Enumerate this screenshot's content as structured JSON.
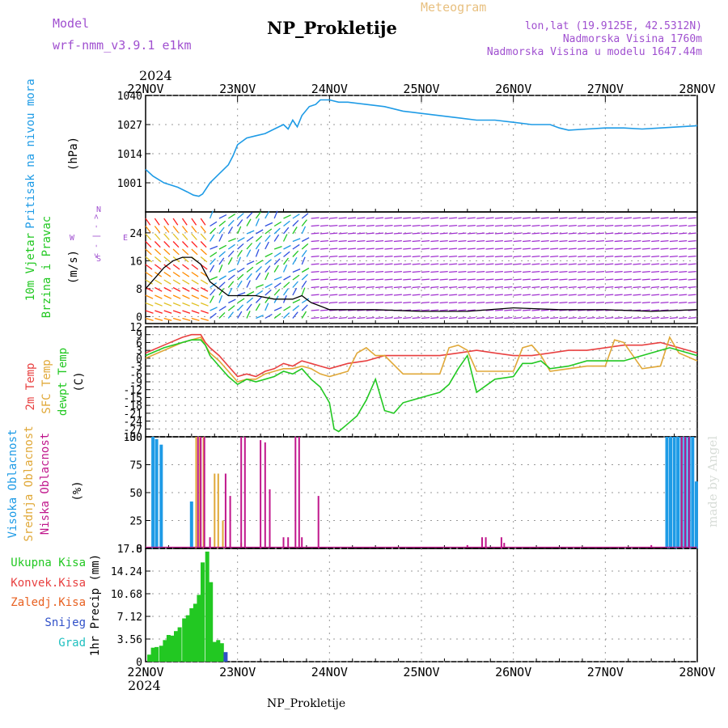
{
  "header": {
    "model_label": "Model",
    "model_name": "wrf-nmm_v3.9.1 e1km",
    "title": "NP_Prokletije",
    "meteogram_label": "Meteogram",
    "coords": "lon,lat (19.9125E, 42.5312N)",
    "altitude": "Nadmorska Visina 1760m",
    "model_altitude": "Nadmorska Visina u modelu 1647.44m",
    "year_top": "2024",
    "year_bottom": "2024",
    "footer_station": "NP_Prokletije",
    "watermark": "made by Angel"
  },
  "colors": {
    "pressure": "#1e9be6",
    "temp2m": "#e84040",
    "sfc": "#e0a838",
    "dewpt": "#22c822",
    "high_cloud": "#1e9be6",
    "mid_cloud": "#e0a838",
    "low_cloud": "#c0178c",
    "precip": "#22c822",
    "snow": "#3050c8",
    "grad": "#20c0c0",
    "violet": "#a050d0"
  },
  "chart_data": [
    {
      "type": "line",
      "panel": "pressure",
      "ylabel_name": "Pritisak na nivou mora",
      "ylabel_unit": "(hPa)",
      "x_labels": [
        "22NOV",
        "23NOV",
        "24NOV",
        "25NOV",
        "26NOV",
        "27NOV",
        "28NOV"
      ],
      "ylim": [
        988,
        1040
      ],
      "yticks": [
        1001,
        1014,
        1027,
        1040
      ],
      "series": [
        {
          "name": "",
          "x": [
            0,
            0.08,
            0.2,
            0.35,
            0.45,
            0.52,
            0.58,
            0.62,
            0.7,
            0.8,
            0.9,
            0.95,
            1.0,
            1.1,
            1.2,
            1.3,
            1.4,
            1.5,
            1.55,
            1.6,
            1.65,
            1.7,
            1.78,
            1.85,
            1.9,
            2.0,
            2.1,
            2.2,
            2.4,
            2.6,
            2.8,
            3.0,
            3.2,
            3.4,
            3.6,
            3.8,
            4.0,
            4.2,
            4.4,
            4.5,
            4.6,
            4.8,
            5.0,
            5.2,
            5.4,
            5.6,
            5.8,
            6.0
          ],
          "y": [
            1007,
            1004,
            1001,
            999,
            997,
            995.5,
            995,
            996,
            1001,
            1005,
            1009,
            1013,
            1018,
            1021,
            1022,
            1023,
            1025,
            1027,
            1025,
            1029,
            1026,
            1031,
            1035,
            1036,
            1038,
            1038,
            1037,
            1037,
            1036,
            1035,
            1033,
            1032,
            1031,
            1030,
            1029,
            1029,
            1028,
            1027,
            1027,
            1025.5,
            1024.5,
            1025,
            1025.5,
            1025.5,
            1025,
            1025.5,
            1026,
            1026.5
          ]
        }
      ]
    },
    {
      "type": "line",
      "panel": "wind",
      "ylabel_name": "10m Vjetar",
      "ylabel_name2": "Brzina i Pravac",
      "ylabel_unit": "(m/s)",
      "compass": {
        "n": "N",
        "w": "W",
        "e": "E",
        "s": "S"
      },
      "ylim": [
        -2,
        30
      ],
      "yticks": [
        0,
        8,
        16,
        24
      ],
      "series": [
        {
          "name": "",
          "x": [
            0,
            0.1,
            0.2,
            0.3,
            0.4,
            0.5,
            0.6,
            0.7,
            0.8,
            0.9,
            1.0,
            1.2,
            1.4,
            1.6,
            1.7,
            1.8,
            1.9,
            2.0,
            2.5,
            3.0,
            3.5,
            4.0,
            4.5,
            5.0,
            5.5,
            6.0
          ],
          "y": [
            8,
            11,
            14,
            16,
            17,
            17,
            15,
            10,
            8,
            6,
            6,
            6,
            5,
            5,
            6,
            4,
            3,
            2,
            2,
            1.5,
            1.5,
            2.5,
            2,
            2,
            1.5,
            2
          ]
        }
      ]
    },
    {
      "type": "line",
      "panel": "temperature",
      "ylabel_t2m": "2m Temp",
      "ylabel_sfc": "SFC Temp",
      "ylabel_dew": "dewpt Temp",
      "ylabel_unit": "(C)",
      "ylim": [
        -30,
        12
      ],
      "yticks": [
        12,
        9,
        6,
        3,
        0,
        -3,
        -6,
        -9,
        -12,
        -15,
        -18,
        -21,
        -24,
        -27,
        -30
      ],
      "series": [
        {
          "name": "",
          "x": [
            0,
            0.2,
            0.4,
            0.5,
            0.6,
            0.65,
            0.7,
            0.8,
            0.9,
            1.0,
            1.1,
            1.2,
            1.3,
            1.4,
            1.5,
            1.6,
            1.7,
            1.8,
            1.9,
            2.0,
            2.2,
            2.4,
            2.6,
            2.8,
            3.0,
            3.2,
            3.4,
            3.6,
            3.8,
            4.0,
            4.2,
            4.4,
            4.6,
            4.8,
            5.0,
            5.2,
            5.4,
            5.6,
            5.8,
            6.0
          ],
          "y": [
            2,
            5,
            8,
            9,
            9,
            6,
            4,
            1,
            -3,
            -7,
            -6,
            -7,
            -5,
            -4,
            -2,
            -3,
            -1,
            -2,
            -3,
            -4,
            -2,
            -1,
            1,
            1,
            1,
            1,
            2,
            3,
            2,
            1,
            1,
            2,
            3,
            3,
            4,
            5,
            5,
            6,
            4,
            2
          ]
        },
        {
          "name": "",
          "x": [
            0,
            0.2,
            0.4,
            0.5,
            0.6,
            0.65,
            0.7,
            0.8,
            0.9,
            1.0,
            1.1,
            1.2,
            1.3,
            1.4,
            1.5,
            1.6,
            1.7,
            1.8,
            1.9,
            2.0,
            2.2,
            2.3,
            2.4,
            2.5,
            2.6,
            2.8,
            3.0,
            3.2,
            3.3,
            3.4,
            3.5,
            3.6,
            3.8,
            4.0,
            4.1,
            4.2,
            4.3,
            4.4,
            4.6,
            4.8,
            5.0,
            5.1,
            5.2,
            5.4,
            5.6,
            5.7,
            5.8,
            6.0
          ],
          "y": [
            0,
            3,
            6,
            7,
            8,
            5,
            2,
            -1,
            -5,
            -9,
            -8,
            -8,
            -6,
            -5,
            -4,
            -4,
            -3,
            -4,
            -6,
            -7,
            -5,
            2,
            4,
            1,
            1,
            -6,
            -6,
            -6,
            4,
            5,
            3,
            -5,
            -5,
            -5,
            4,
            5,
            1,
            -5,
            -4,
            -3,
            -3,
            7,
            6,
            -4,
            -3,
            8,
            2,
            -1
          ]
        },
        {
          "name": "",
          "x": [
            0,
            0.2,
            0.4,
            0.5,
            0.6,
            0.65,
            0.7,
            0.8,
            0.9,
            1.0,
            1.1,
            1.2,
            1.3,
            1.4,
            1.5,
            1.6,
            1.7,
            1.8,
            1.9,
            2.0,
            2.05,
            2.1,
            2.2,
            2.3,
            2.4,
            2.5,
            2.6,
            2.7,
            2.8,
            3.0,
            3.2,
            3.3,
            3.4,
            3.5,
            3.6,
            3.8,
            4.0,
            4.1,
            4.2,
            4.3,
            4.4,
            4.6,
            4.8,
            5.0,
            5.2,
            5.4,
            5.6,
            5.7,
            5.8,
            6.0
          ],
          "y": [
            1,
            4,
            6,
            7,
            7,
            5,
            1,
            -3,
            -7,
            -10,
            -8,
            -9,
            -8,
            -7,
            -5,
            -6,
            -4,
            -8,
            -11,
            -17,
            -27,
            -28,
            -25,
            -22,
            -16,
            -8,
            -20,
            -21,
            -17,
            -15,
            -13,
            -10,
            -4,
            1,
            -13,
            -8,
            -7,
            -2,
            -2,
            -1,
            -4,
            -3,
            -1,
            -1,
            -1,
            1,
            3,
            4,
            3,
            1
          ]
        }
      ]
    },
    {
      "type": "bar",
      "panel": "clouds",
      "ylabel_high": "Visoka Oblacnost",
      "ylabel_mid": "Srednja Oblacnost",
      "ylabel_low": "Niska Oblacnost",
      "ylabel_unit": "(%)",
      "ylim": [
        0,
        100
      ],
      "yticks": [
        0,
        25,
        50,
        75,
        100
      ],
      "series": [
        {
          "name": "",
          "x": [
            0.08,
            0.12,
            0.17,
            0.5,
            5.67,
            5.71,
            5.75,
            5.79,
            5.83,
            5.87,
            5.91,
            5.95,
            5.99
          ],
          "values": [
            100,
            98,
            93,
            42,
            100,
            100,
            100,
            100,
            100,
            100,
            100,
            100,
            60
          ]
        },
        {
          "name": "",
          "x": [
            0.55,
            0.59,
            0.63,
            0.75,
            0.79,
            0.84,
            1.04,
            5.83
          ],
          "values": [
            100,
            100,
            100,
            67,
            67,
            25,
            5,
            100
          ]
        },
        {
          "name": "",
          "x": [
            0.57,
            0.6,
            0.64,
            0.7,
            0.87,
            0.92,
            1.04,
            1.08,
            1.25,
            1.3,
            1.35,
            1.5,
            1.55,
            1.63,
            1.67,
            1.7,
            1.88,
            3.5,
            3.66,
            3.7,
            3.87,
            3.9,
            5.5,
            5.83,
            5.87,
            5.91
          ],
          "values": [
            100,
            100,
            100,
            10,
            67,
            47,
            100,
            100,
            97,
            95,
            53,
            10,
            10,
            100,
            100,
            10,
            47,
            3,
            10,
            10,
            10,
            5,
            3,
            100,
            100,
            100
          ]
        }
      ]
    },
    {
      "type": "bar",
      "panel": "precip",
      "ylabel_total": "Ukupna Kisa",
      "ylabel_conv": "Konvek.Kisa",
      "ylabel_frozen": "Zaledj.Kisa",
      "ylabel_snow": "Snijeg",
      "ylabel_grad": "Grad",
      "ylabel_unit": "1hr Precip (mm)",
      "ylim": [
        0,
        17.8
      ],
      "yticks": [
        "0",
        "3.56",
        "7.12",
        "10.68",
        "14.24",
        "17.8"
      ],
      "series": [
        {
          "name": "",
          "x": [
            0.04,
            0.08,
            0.12,
            0.17,
            0.21,
            0.25,
            0.29,
            0.33,
            0.37,
            0.42,
            0.46,
            0.5,
            0.54,
            0.58,
            0.62,
            0.67,
            0.71,
            0.75,
            0.79,
            0.83,
            0.87
          ],
          "values": [
            1.1,
            2.2,
            2.3,
            2.5,
            3.4,
            4.2,
            4.1,
            4.8,
            5.4,
            6.8,
            7.3,
            8.4,
            9.1,
            10.5,
            15.6,
            17.3,
            12.5,
            3.1,
            3.4,
            2.9,
            1.5
          ]
        }
      ]
    }
  ]
}
